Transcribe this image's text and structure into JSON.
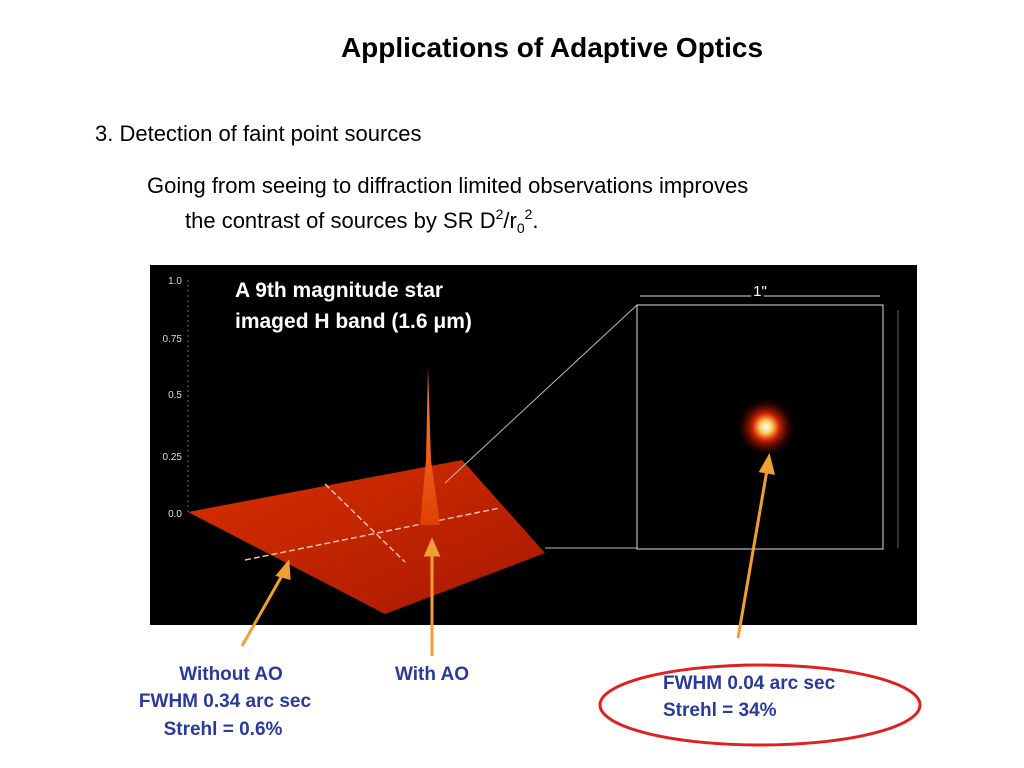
{
  "title": "Applications of Adaptive Optics",
  "section": {
    "heading": "3. Detection of faint point sources",
    "body": {
      "line1": "Going from seeing to diffraction limited observations improves",
      "line2": "the contrast of sources by SR D",
      "sup1": "2",
      "mid": "/r",
      "sub": "0",
      "sup2": "2",
      "end": "."
    }
  },
  "figure": {
    "caption_lines": [
      "A 9th magnitude star",
      "imaged H band (1.6 μm)"
    ],
    "axis_labels": [
      "1.0",
      "0.75",
      "0.5",
      "0.25",
      "0.0"
    ],
    "scale_label": "1\""
  },
  "annotations": {
    "without_ao": [
      "Without AO",
      "FWHM 0.34 arc sec",
      "Strehl = 0.6%"
    ],
    "with_ao": [
      "With AO"
    ],
    "inset": [
      "FWHM 0.04 arc sec",
      "Strehl = 34%"
    ]
  }
}
